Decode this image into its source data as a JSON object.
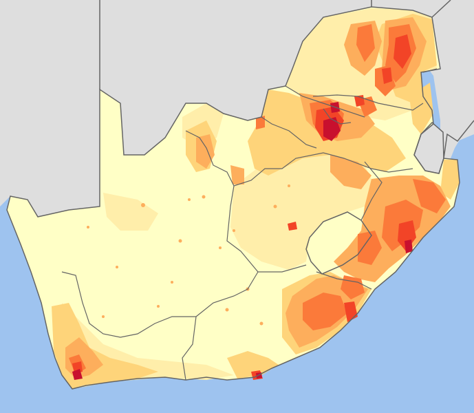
{
  "map": {
    "colors": {
      "ocean": "#9ec3ef",
      "neighbour": "#dedede",
      "border": "#646464",
      "density_1": "#ffffc6",
      "density_2": "#ffeeaa",
      "density_3": "#fed47a",
      "density_4": "#fdae5c",
      "density_5": "#fb7a3a",
      "density_6": "#f24427",
      "density_7": "#c8102e"
    }
  }
}
